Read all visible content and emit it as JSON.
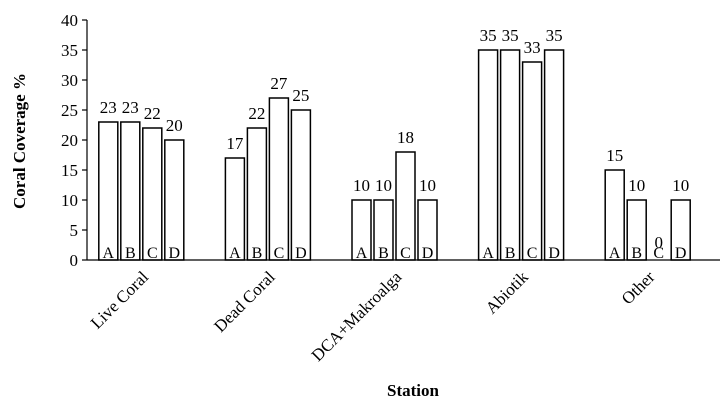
{
  "chart_data": {
    "type": "bar",
    "categories": [
      "Live Coral",
      "Dead Coral",
      "DCA+Makroalga",
      "Abiotik",
      "Other"
    ],
    "series": [
      {
        "values": [
          23,
          17,
          10,
          35,
          15
        ]
      },
      {
        "values": [
          23,
          22,
          10,
          35,
          10
        ]
      },
      {
        "values": [
          22,
          27,
          18,
          33,
          0
        ]
      },
      {
        "values": [
          20,
          25,
          10,
          35,
          10
        ]
      }
    ],
    "bar_labels": [
      "A",
      "B",
      "C",
      "D"
    ],
    "xlabel": "Station",
    "ylabel": "Coral Coverage %",
    "ylim": [
      0,
      40
    ],
    "yticks": [
      0,
      5,
      10,
      15,
      20,
      25,
      30,
      35,
      40
    ],
    "grid": false,
    "colors": {
      "bar_fill": "#ffffff",
      "bar_stroke": "#000000"
    }
  }
}
